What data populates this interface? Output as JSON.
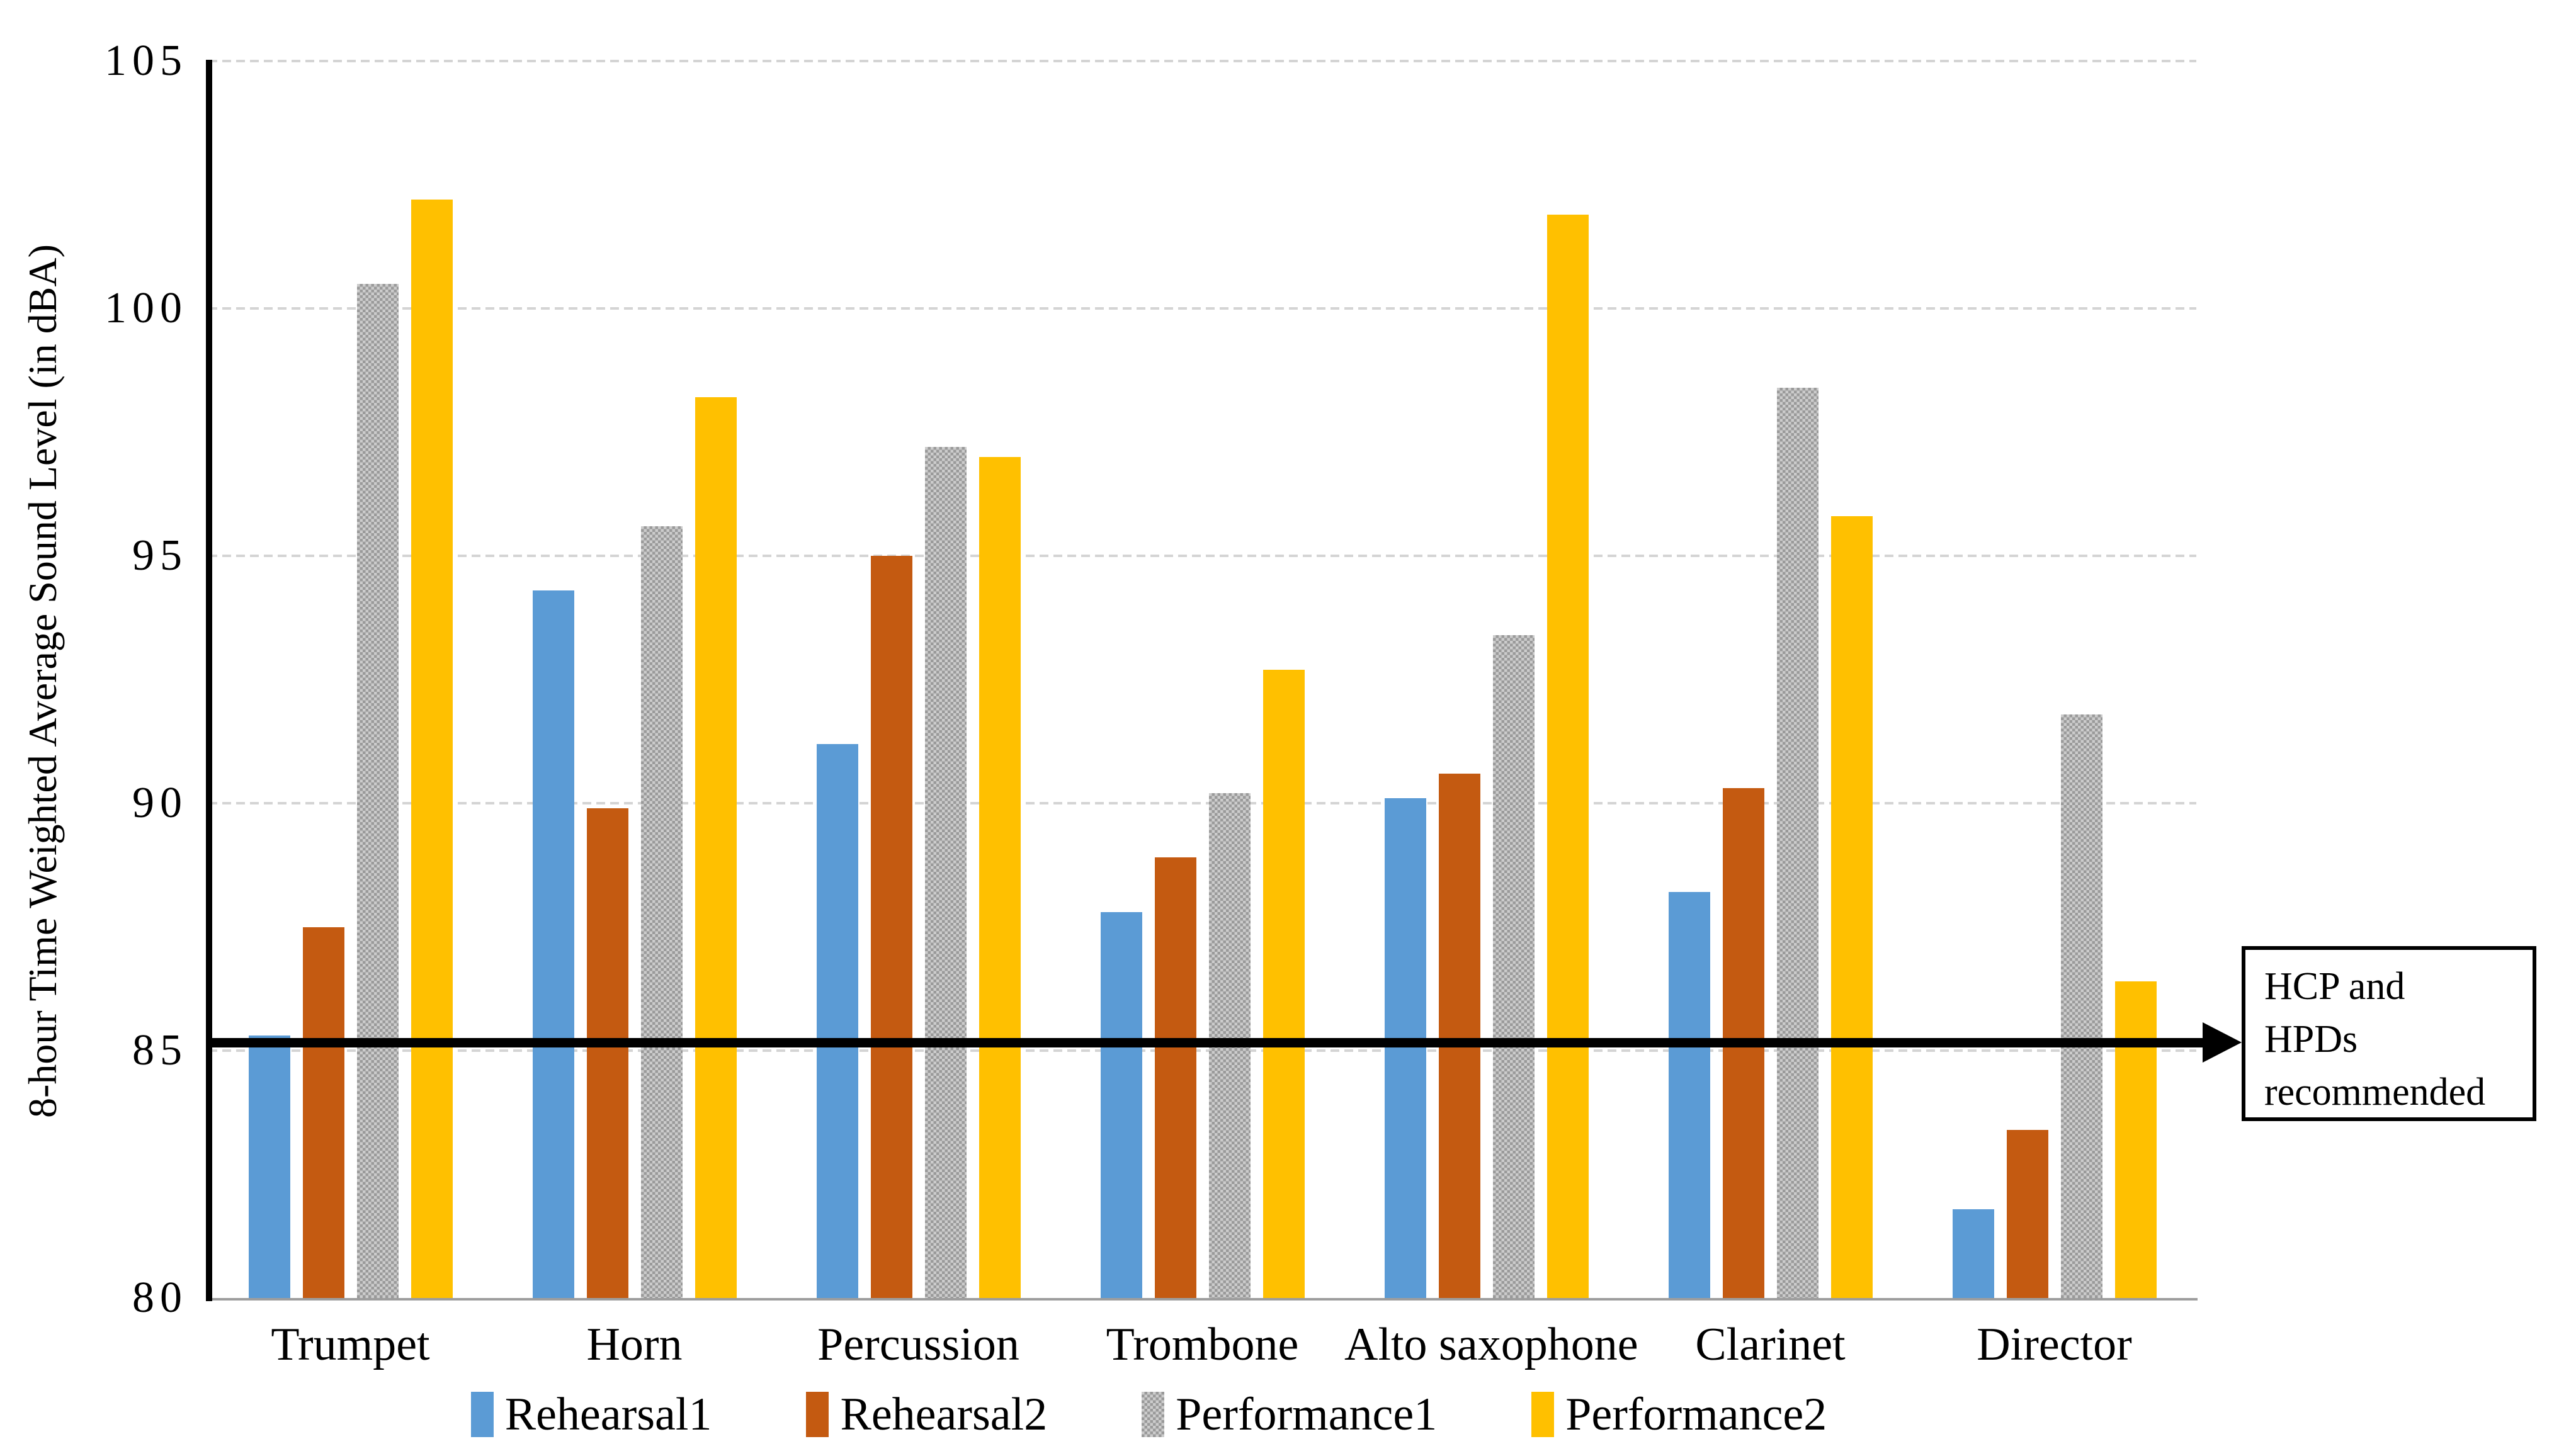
{
  "chart_data": {
    "type": "bar",
    "title": "",
    "ylabel": "8-hour Time Weighted Average Sound Level (in dBA)",
    "xlabel": "",
    "ylim": [
      80,
      105
    ],
    "yticks": [
      105,
      100,
      95,
      90,
      85,
      80
    ],
    "grid": true,
    "legend_position": "bottom",
    "categories": [
      "Trumpet",
      "Horn",
      "Percussion",
      "Trombone",
      "Alto saxophone",
      "Clarinet",
      "Director"
    ],
    "series": [
      {
        "name": "Rehearsal1",
        "color": "#5B9BD5",
        "pattern": false,
        "values": [
          85.3,
          94.3,
          91.2,
          87.8,
          90.1,
          88.2,
          81.8
        ]
      },
      {
        "name": "Rehearsal2",
        "color": "#C45A11",
        "pattern": false,
        "values": [
          87.5,
          89.9,
          95.0,
          88.9,
          90.6,
          90.3,
          83.4
        ]
      },
      {
        "name": "Performance1",
        "color": "#ADADAD",
        "pattern": true,
        "values": [
          100.5,
          95.6,
          97.2,
          90.2,
          93.4,
          98.4,
          91.8
        ]
      },
      {
        "name": "Performance2",
        "color": "#FFC000",
        "pattern": false,
        "values": [
          102.2,
          98.2,
          97.0,
          92.7,
          101.9,
          95.8,
          86.4
        ]
      }
    ],
    "reference_line": {
      "value": 85,
      "style": "bold black line with right arrow"
    }
  },
  "annotation": {
    "lines": [
      "HCP and",
      "HPDs",
      "recommended"
    ]
  },
  "colors": {
    "rehearsal1_blue": "#5B9BD5",
    "rehearsal2_orange": "#C45A11",
    "performance1_gray": "#ADADAD",
    "performance2_yellow": "#FFC000",
    "gridline": "#D4D4D4",
    "axis": "#000000"
  }
}
